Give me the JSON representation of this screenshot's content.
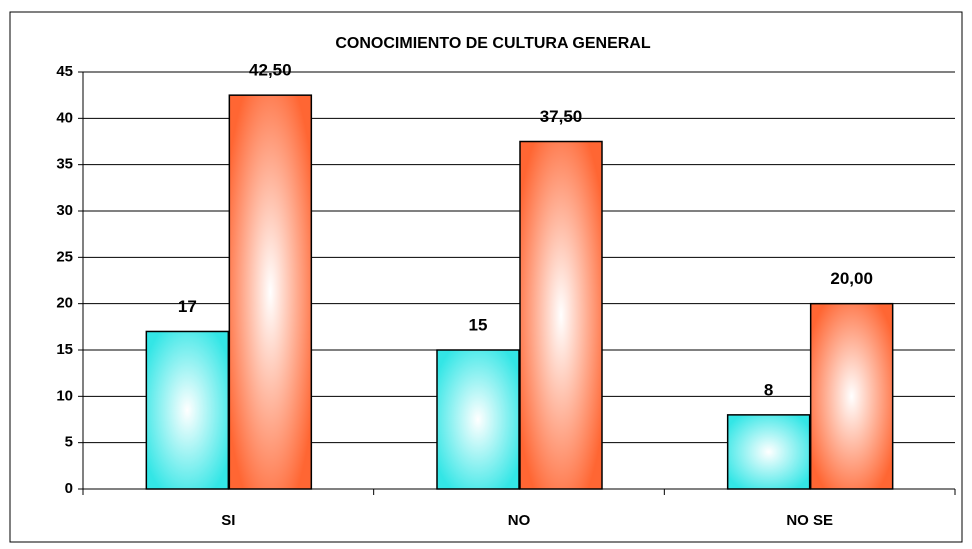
{
  "chart_data": {
    "type": "bar",
    "title": "CONOCIMIENTO DE CULTURA GENERAL",
    "categories": [
      "SI",
      "NO",
      "NO SE"
    ],
    "series": [
      {
        "color": "#33e6e6",
        "values": [
          17,
          15,
          8
        ]
      },
      {
        "color": "#ff6633",
        "values": [
          42.5,
          37.5,
          20
        ],
        "value_labels": [
          "42,50",
          "37,50",
          "20,00"
        ]
      }
    ],
    "ylim": [
      0,
      45
    ],
    "yticks": [
      0,
      5,
      10,
      15,
      20,
      25,
      30,
      35,
      40,
      45
    ],
    "grid": true
  }
}
